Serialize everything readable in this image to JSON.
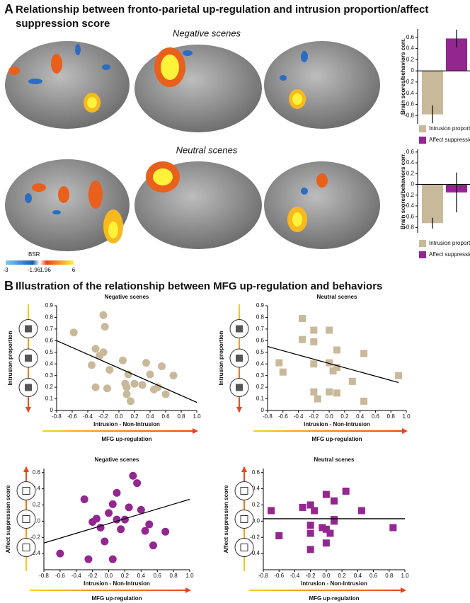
{
  "panel_a": {
    "letter": "A",
    "title_line1": "Relationship between fronto-parietal up-regulation and intrusion proportion/affect",
    "title_line2": "suppression score",
    "row_labels": [
      "Negative scenes",
      "Neutral scenes"
    ]
  },
  "colorbar": {
    "title": "BSR",
    "labels": [
      "-3",
      "-1.96",
      "1.96",
      "6"
    ]
  },
  "panel_b": {
    "letter": "B",
    "title": "Illustration of the relationship between MFG up-regulation and behaviors"
  },
  "chart_data": [
    {
      "type": "bar",
      "ylabel": "Brain scores/behaviors corr.",
      "categories": [
        "Intrusion proportion",
        "Affect suppression"
      ],
      "colors": [
        "#c9b99b",
        "#93278f"
      ],
      "values": [
        -0.78,
        0.58
      ],
      "errors": [
        0.16,
        0.16
      ],
      "ylim": [
        -0.95,
        0.75
      ],
      "yticks": [
        -0.8,
        -0.6,
        -0.4,
        -0.2,
        0,
        0.2,
        0.4,
        0.6
      ]
    },
    {
      "type": "bar",
      "ylabel": "Brain scores/behaviors corr.",
      "categories": [
        "Intrusion proportion",
        "Affect suppression"
      ],
      "colors": [
        "#c9b99b",
        "#93278f"
      ],
      "values": [
        -0.72,
        -0.15
      ],
      "errors": [
        0.1,
        0.37
      ],
      "ylim": [
        -0.9,
        0.65
      ],
      "yticks": [
        -0.8,
        -0.6,
        -0.4,
        -0.2,
        0,
        0.2,
        0.4,
        0.6
      ]
    },
    {
      "type": "scatter",
      "title": "Negative scenes",
      "xlabel": "Intrusion - Non-Intrusion",
      "arrow_label": "MFG up-regulation",
      "ylabel": "Intrusion proportion",
      "color": "#c9b99b",
      "marker": "circle",
      "x": [
        -0.58,
        -0.2,
        -0.18,
        -0.3,
        -0.25,
        -0.2,
        -0.3,
        -0.35,
        -0.12,
        -0.15,
        0.05,
        0.08,
        0.1,
        0.1,
        0.12,
        0.15,
        0.2,
        0.3,
        0.35,
        0.4,
        0.45,
        0.5,
        0.6,
        0.7,
        0.55
      ],
      "values": [
        0.67,
        0.82,
        0.72,
        0.53,
        0.47,
        0.5,
        0.2,
        0.39,
        0.35,
        0.19,
        0.43,
        0.23,
        0.2,
        0.14,
        0.31,
        0.08,
        0.23,
        0.22,
        0.41,
        0.31,
        0.18,
        0.2,
        0.14,
        0.3,
        0.38
      ],
      "fit": {
        "x": [
          -0.8,
          1.0
        ],
        "values": [
          0.6,
          0.07
        ]
      },
      "xlim": [
        -0.8,
        1.0
      ],
      "xticks": [
        -0.8,
        -0.6,
        -0.4,
        -0.2,
        {
          "value": 0,
          "label": "0.0"
        },
        0.2,
        0.4,
        0.6,
        0.8,
        {
          "value": 1,
          "label": "1.0"
        }
      ],
      "ylim": [
        0,
        0.9
      ],
      "yticks": [
        0,
        0.1,
        0.2,
        0.3,
        0.4,
        0.5,
        0.6,
        0.7,
        0.8,
        0.9
      ]
    },
    {
      "type": "scatter",
      "title": "Neutral scenes",
      "xlabel": "Intrusion - Non-Intrusion",
      "arrow_label": "MFG up-regulation",
      "ylabel": "Intrusion proportion",
      "color": "#c9b99b",
      "marker": "square",
      "x": [
        -0.35,
        -0.2,
        -0.35,
        -0.2,
        0,
        0.1,
        -0.65,
        -0.6,
        -0.2,
        0,
        -0.2,
        0,
        0.1,
        0.05,
        0.1,
        -0.15,
        0.3,
        0.45,
        0.45,
        0.9
      ],
      "values": [
        0.79,
        0.69,
        0.61,
        0.59,
        0.69,
        0.52,
        0.41,
        0.33,
        0.4,
        0.41,
        0.16,
        0.16,
        0.15,
        0.34,
        0.37,
        0.1,
        0.25,
        0.49,
        0.08,
        0.3
      ],
      "fit": {
        "x": [
          -0.8,
          0.9
        ],
        "values": [
          0.55,
          0.24
        ]
      },
      "xlim": [
        -0.8,
        1.0
      ],
      "xticks": [
        -0.8,
        -0.6,
        -0.4,
        -0.2,
        {
          "value": 0,
          "label": "0.0"
        },
        0.2,
        0.4,
        0.6,
        0.8,
        {
          "value": 1,
          "label": "1.0"
        }
      ],
      "ylim": [
        0,
        0.9
      ],
      "yticks": [
        0,
        0.1,
        0.2,
        0.3,
        0.4,
        0.5,
        0.6,
        0.7,
        0.8,
        0.9
      ]
    },
    {
      "type": "scatter",
      "title": "Negative scenes",
      "xlabel": "Intrusion - Non-Intrusion",
      "arrow_label": "MFG up-regulation",
      "ylabel": "Affect suppression score",
      "color": "#93278f",
      "marker": "circle",
      "x": [
        -0.6,
        -0.3,
        -0.2,
        -0.25,
        -0.15,
        -0.1,
        0,
        0.05,
        0.05,
        0.1,
        0.15,
        0.2,
        0.25,
        0.3,
        0.35,
        0.4,
        0.45,
        0.5,
        0.55,
        0.7,
        0.1,
        -0.05
      ],
      "values": [
        -0.4,
        0.27,
        -0.01,
        -0.47,
        0.03,
        -0.08,
        0.1,
        0.21,
        -0.47,
        0.02,
        -0.1,
        0.02,
        0.17,
        0.56,
        0.47,
        0.14,
        -0.12,
        -0.04,
        -0.3,
        -0.13,
        0.35,
        -0.25
      ],
      "fit": {
        "x": [
          -0.8,
          1.0
        ],
        "values": [
          -0.27,
          0.27
        ]
      },
      "xlim": [
        -0.8,
        1.0
      ],
      "xticks": [
        -0.8,
        -0.6,
        -0.4,
        -0.2,
        {
          "value": 0,
          "label": "0.0"
        },
        0.2,
        0.4,
        0.6,
        0.8,
        {
          "value": 1,
          "label": "1.0"
        }
      ],
      "ylim": [
        -0.6,
        0.65
      ],
      "yticks": [
        -0.4,
        -0.2,
        {
          "value": 0,
          "label": "0.0"
        },
        0.2,
        0.4,
        0.6
      ]
    },
    {
      "type": "scatter",
      "title": "Neutral scenes",
      "xlabel": "Intrusion - Non-Intrusion",
      "arrow_label": "MFG up-regulation",
      "ylabel": "Affect suppression score",
      "color": "#93278f",
      "marker": "square",
      "x": [
        -0.7,
        -0.6,
        -0.3,
        -0.2,
        -0.15,
        -0.2,
        -0.2,
        -0.2,
        -0.05,
        0,
        0,
        0.05,
        0.1,
        0.1,
        0,
        0.25,
        0.45,
        0.85,
        0.1
      ],
      "values": [
        0.13,
        -0.18,
        0.17,
        0.2,
        0.13,
        -0.05,
        -0.15,
        -0.35,
        -0.08,
        0.33,
        -0.1,
        -0.15,
        0.25,
        0,
        -0.27,
        0.37,
        0.13,
        -0.08,
        0.02
      ],
      "fit": {
        "x": [
          -0.8,
          1.0
        ],
        "values": [
          0.03,
          0.03
        ]
      },
      "xlim": [
        -0.8,
        1.0
      ],
      "xticks": [
        -0.8,
        -0.6,
        -0.4,
        -0.2,
        {
          "value": 0,
          "label": "0.0"
        },
        0.2,
        0.4,
        0.6,
        0.8,
        {
          "value": 1,
          "label": "1.0"
        }
      ],
      "ylim": [
        -0.6,
        0.65
      ],
      "yticks": [
        -0.4,
        -0.2,
        {
          "value": 0,
          "label": "0.0"
        },
        0.2,
        0.4,
        0.6
      ]
    }
  ]
}
